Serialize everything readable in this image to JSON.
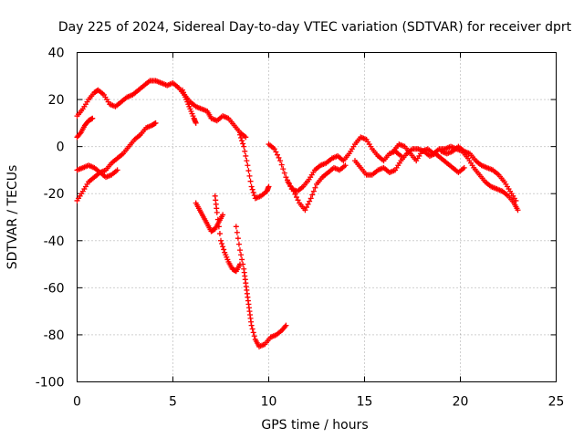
{
  "chart_data": {
    "type": "scatter",
    "title": "Day 225 of 2024, Sidereal Day-to-day VTEC variation (SDTVAR) for receiver dprt",
    "xlabel": "GPS time / hours",
    "ylabel": "SDTVAR / TECUs",
    "xlim": [
      0,
      25
    ],
    "ylim": [
      -100,
      40
    ],
    "x_ticks": [
      0,
      5,
      10,
      15,
      20,
      25
    ],
    "y_ticks": [
      -100,
      -80,
      -60,
      -40,
      -20,
      0,
      20,
      40
    ],
    "x_tick_labels": [
      "0",
      "5",
      "10",
      "15",
      "20",
      "25"
    ],
    "y_tick_labels": [
      "-100",
      "-80",
      "-60",
      "-40",
      "-20",
      "0",
      "20",
      "40"
    ],
    "grid": true,
    "marker": "+",
    "color": "#ff0000",
    "series": [
      {
        "x": [
          0.0,
          0.3,
          0.6,
          0.9,
          1.1,
          1.4,
          1.7,
          2.0,
          2.3,
          2.6,
          2.9,
          3.2,
          3.5,
          3.8,
          4.1,
          4.4,
          4.7,
          5.0,
          5.3,
          5.6,
          5.9,
          6.2,
          6.5,
          6.8,
          7.0,
          7.3,
          7.6,
          7.9,
          8.2,
          8.5,
          8.8
        ],
        "y": [
          13,
          16,
          20,
          23,
          24,
          22,
          18,
          17,
          19,
          21,
          22,
          24,
          26,
          28,
          28,
          27,
          26,
          27,
          25,
          22,
          19,
          17,
          16,
          15,
          12,
          11,
          13,
          12,
          9,
          6,
          4
        ]
      },
      {
        "x": [
          0.0,
          0.2,
          0.4,
          0.6,
          0.8
        ],
        "y": [
          4,
          6,
          9,
          11,
          12
        ]
      },
      {
        "x": [
          0.0,
          0.3,
          0.6,
          0.9,
          1.2,
          1.5,
          1.8,
          2.1,
          2.4,
          2.7,
          3.0,
          3.3,
          3.6,
          3.9,
          4.1
        ],
        "y": [
          -23,
          -19,
          -15,
          -13,
          -11,
          -10,
          -7,
          -5,
          -3,
          0,
          3,
          5,
          8,
          9,
          10
        ]
      },
      {
        "x": [
          0.0,
          0.3,
          0.6,
          0.9,
          1.2,
          1.5,
          1.8,
          2.1
        ],
        "y": [
          -10,
          -9,
          -8,
          -9,
          -11,
          -13,
          -12,
          -10
        ]
      },
      {
        "x": [
          5.5,
          5.7,
          5.9,
          6.1,
          6.2
        ],
        "y": [
          24,
          20,
          16,
          12,
          10
        ]
      },
      {
        "x": [
          8.5,
          8.7,
          8.9,
          9.1,
          9.3,
          9.6,
          9.9,
          10.0
        ],
        "y": [
          5,
          0,
          -8,
          -17,
          -22,
          -21,
          -19,
          -17
        ]
      },
      {
        "x": [
          6.2,
          6.4,
          6.6,
          6.8,
          7.0,
          7.2,
          7.4,
          7.6
        ],
        "y": [
          -24,
          -27,
          -30,
          -33,
          -36,
          -35,
          -32,
          -29
        ]
      },
      {
        "x": [
          7.2,
          7.3,
          7.5,
          7.7,
          7.9,
          8.1,
          8.3,
          8.5
        ],
        "y": [
          -21,
          -28,
          -40,
          -45,
          -49,
          -52,
          -53,
          -50
        ]
      },
      {
        "x": [
          8.3,
          8.5,
          8.7,
          8.8,
          8.9,
          9.0,
          9.1,
          9.3,
          9.5,
          9.8,
          10.1,
          10.4,
          10.7,
          10.9
        ],
        "y": [
          -34,
          -44,
          -52,
          -58,
          -64,
          -70,
          -76,
          -82,
          -85,
          -84,
          -81,
          -80,
          -78,
          -76
        ]
      },
      {
        "x": [
          10.0,
          10.3,
          10.6,
          10.9,
          11.2,
          11.5,
          11.8,
          12.1,
          12.4,
          12.7,
          13.0,
          13.3,
          13.6,
          13.9,
          14.2,
          14.5,
          14.8,
          15.1,
          15.4,
          15.7,
          16.0,
          16.3,
          16.6,
          16.9
        ],
        "y": [
          1,
          -1,
          -6,
          -13,
          -18,
          -19,
          -17,
          -14,
          -10,
          -8,
          -7,
          -5,
          -4,
          -6,
          -3,
          1,
          4,
          3,
          -1,
          -4,
          -6,
          -3,
          -2,
          -4
        ]
      },
      {
        "x": [
          11.0,
          11.3,
          11.6,
          11.9,
          12.2,
          12.5,
          12.8,
          13.1,
          13.4,
          13.7,
          14.0
        ],
        "y": [
          -15,
          -19,
          -24,
          -27,
          -22,
          -16,
          -13,
          -11,
          -9,
          -10,
          -8
        ]
      },
      {
        "x": [
          14.5,
          14.8,
          15.1,
          15.4,
          15.7,
          16.0,
          16.3,
          16.6,
          16.9,
          17.2,
          17.5,
          17.8,
          18.1,
          18.4,
          18.7,
          19.0,
          19.3,
          19.6,
          19.9,
          20.2
        ],
        "y": [
          -6,
          -9,
          -12,
          -12,
          -10,
          -9,
          -11,
          -10,
          -6,
          -3,
          -1,
          -1,
          -2,
          -4,
          -3,
          -5,
          -7,
          -9,
          -11,
          -9
        ]
      },
      {
        "x": [
          16.5,
          16.8,
          17.1,
          17.4,
          17.7,
          18.0,
          18.3,
          18.6,
          18.9,
          19.2,
          19.5,
          19.8,
          20.1,
          20.4,
          20.7,
          21.0,
          21.3,
          21.6,
          21.9,
          22.2,
          22.5,
          22.8,
          23.0
        ],
        "y": [
          -2,
          1,
          0,
          -3,
          -6,
          -2,
          -1,
          -3,
          -1,
          -1,
          0,
          -1,
          -2,
          -5,
          -9,
          -12,
          -15,
          -17,
          -18,
          -19,
          -21,
          -24,
          -27
        ]
      },
      {
        "x": [
          19.0,
          19.3,
          19.6,
          19.9,
          20.2,
          20.5,
          20.8,
          21.1,
          21.4,
          21.7,
          22.0,
          22.3,
          22.6,
          22.9
        ],
        "y": [
          -2,
          -3,
          -2,
          0,
          -2,
          -3,
          -6,
          -8,
          -9,
          -10,
          -12,
          -15,
          -19,
          -23
        ]
      }
    ]
  }
}
